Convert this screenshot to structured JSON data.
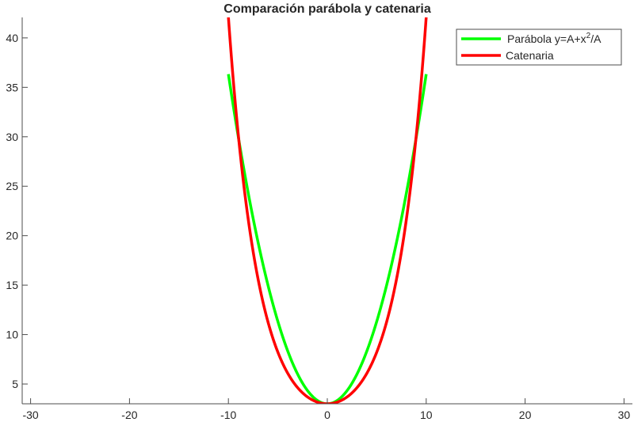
{
  "chart_data": {
    "type": "line",
    "title": "Comparación parábola y catenaria",
    "xlabel": "",
    "ylabel": "",
    "xlim": [
      -30,
      30
    ],
    "ylim": [
      3,
      42
    ],
    "xticks": [
      -30,
      -20,
      -10,
      0,
      10,
      20,
      30
    ],
    "yticks": [
      5,
      10,
      15,
      20,
      25,
      30,
      35,
      40
    ],
    "grid": false,
    "legend_position": "northeast",
    "parameter_A": 3,
    "series": [
      {
        "name": "Parábola  y=A+x²/A",
        "legend_main": "Parábola  y=A+x",
        "legend_sup": "2",
        "legend_tail": "/A",
        "color": "#00ff00",
        "formula": "y = A + x^2/A",
        "x": [
          -10,
          -8,
          -6,
          -4,
          -2,
          0,
          2,
          4,
          6,
          8,
          10
        ],
        "values": [
          36.33,
          24.33,
          15.0,
          8.33,
          4.33,
          3.0,
          4.33,
          8.33,
          15.0,
          24.33,
          36.33
        ]
      },
      {
        "name": "Catenaria",
        "color": "#ff0000",
        "formula": "y = A cosh(x/A)",
        "x": [
          -10,
          -8,
          -6,
          -4,
          -2,
          0,
          2,
          4,
          6,
          8,
          10
        ],
        "values": [
          42.0,
          21.6,
          11.29,
          6.1,
          3.69,
          3.0,
          3.69,
          6.1,
          11.29,
          21.6,
          42.0
        ]
      }
    ]
  },
  "colors": {
    "axis": "#4d4d4d",
    "text": "#262626",
    "parabola": "#00ff00",
    "catenary": "#ff0000"
  }
}
